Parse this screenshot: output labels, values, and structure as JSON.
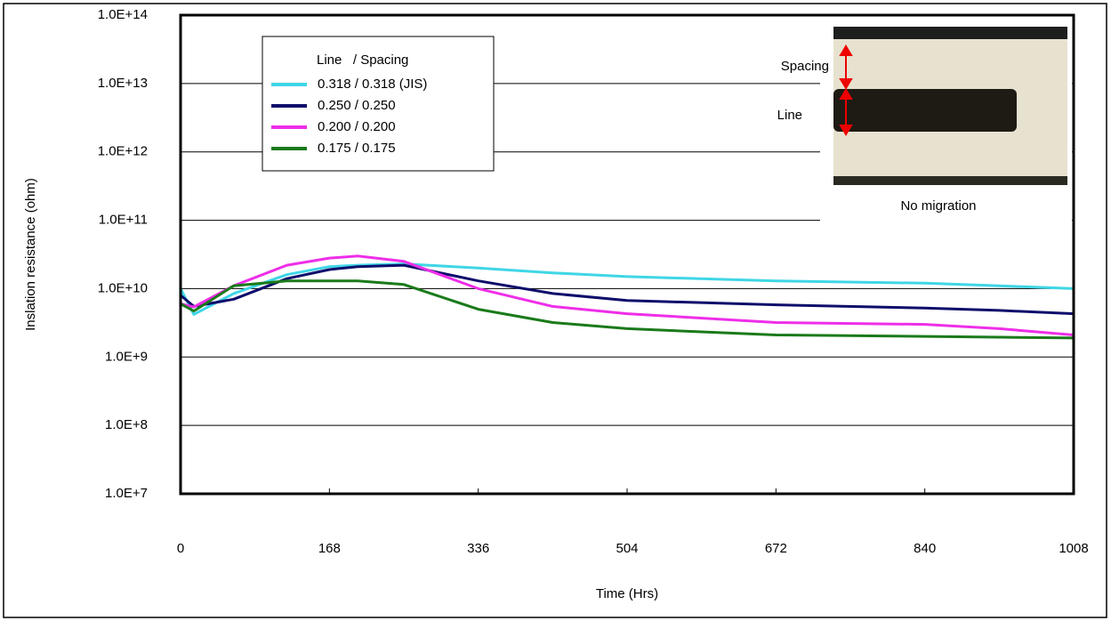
{
  "chart_data": {
    "type": "line",
    "xlabel": "Time (Hrs)",
    "ylabel": "Inslation resistance (ohm)",
    "legend_title": "Line   / Spacing",
    "annotations": [
      "Spacing",
      "Line",
      "No migration"
    ],
    "log_y": true,
    "grid": true,
    "xlim": [
      0,
      1008
    ],
    "xticks": [
      0,
      168,
      336,
      504,
      672,
      840,
      1008
    ],
    "ylim": [
      10000000,
      100000000000000
    ],
    "yticks": [
      {
        "value": 10000000,
        "label": "1.0E+7"
      },
      {
        "value": 100000000,
        "label": "1.0E+8"
      },
      {
        "value": 1000000000,
        "label": "1.0E+9"
      },
      {
        "value": 10000000000,
        "label": "1.0E+10"
      },
      {
        "value": 100000000000,
        "label": "1.0E+11"
      },
      {
        "value": 1000000000000,
        "label": "1.0E+12"
      },
      {
        "value": 10000000000000,
        "label": "1.0E+13"
      },
      {
        "value": 100000000000000,
        "label": "1.0E+14"
      }
    ],
    "x": [
      0,
      15,
      60,
      120,
      168,
      200,
      252,
      336,
      420,
      504,
      672,
      840,
      924,
      1008
    ],
    "series": [
      {
        "name": "0.318 / 0.318 (JIS)",
        "color": "#3fd6e6",
        "values": [
          10000000000.0,
          4200000000.0,
          8500000000.0,
          16000000000.0,
          21000000000.0,
          22000000000.0,
          23000000000.0,
          20000000000.0,
          17000000000.0,
          15000000000.0,
          13000000000.0,
          12000000000.0,
          11000000000.0,
          10000000000.0
        ]
      },
      {
        "name": "0.250 / 0.250",
        "color": "#0d0d6b",
        "values": [
          8000000000.0,
          5500000000.0,
          7000000000.0,
          14000000000.0,
          19000000000.0,
          21000000000.0,
          22000000000.0,
          13000000000.0,
          8500000000.0,
          6700000000.0,
          5800000000.0,
          5200000000.0,
          4800000000.0,
          4300000000.0
        ]
      },
      {
        "name": "0.200 / 0.200",
        "color": "#ee2ee8",
        "values": [
          6000000000.0,
          5400000000.0,
          11000000000.0,
          22000000000.0,
          28000000000.0,
          30000000000.0,
          25000000000.0,
          10000000000.0,
          5500000000.0,
          4300000000.0,
          3200000000.0,
          3000000000.0,
          2600000000.0,
          2100000000.0
        ]
      },
      {
        "name": "0.175 / 0.175",
        "color": "#1a7a1a",
        "values": [
          6000000000.0,
          4700000000.0,
          11000000000.0,
          13000000000.0,
          13000000000.0,
          13000000000.0,
          11500000000.0,
          5000000000.0,
          3200000000.0,
          2600000000.0,
          2100000000.0,
          2000000000.0,
          1950000000.0,
          1900000000.0
        ]
      }
    ]
  }
}
